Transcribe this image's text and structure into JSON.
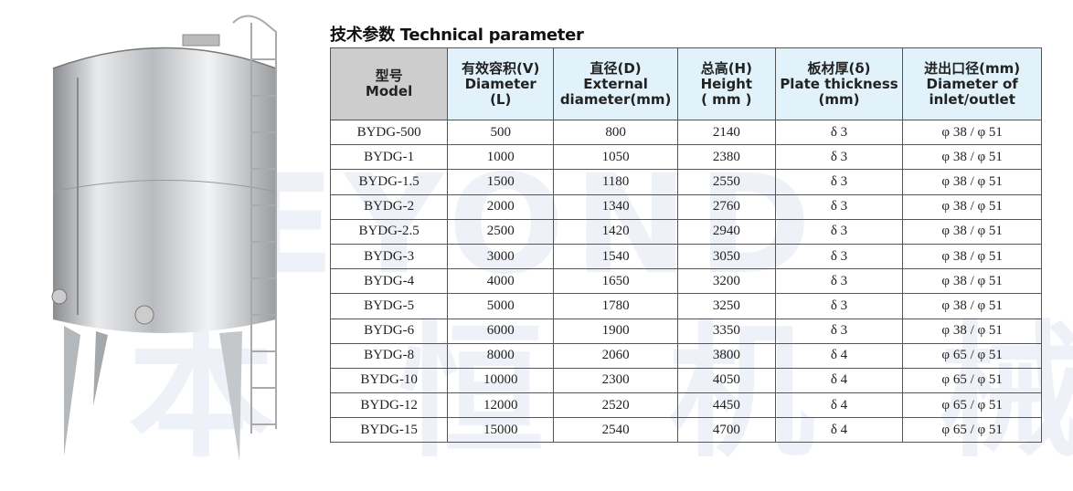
{
  "title": "技术参数 Technical parameter",
  "watermark": {
    "brand": "BEYOND",
    "chinese": "本 恒 机 械"
  },
  "headers": [
    {
      "zh": "型号",
      "en1": "Model",
      "en2": ""
    },
    {
      "zh": "有效容积(V)",
      "en1": "Diameter",
      "en2": "(L)"
    },
    {
      "zh": "直径(D)",
      "en1": "External",
      "en2": "diameter(mm)"
    },
    {
      "zh": "总高(H)",
      "en1": "Height",
      "en2": "( mm )"
    },
    {
      "zh": "板材厚(δ)",
      "en1": "Plate thickness",
      "en2": "(mm)"
    },
    {
      "zh": "进出口径(mm)",
      "en1": "Diameter of",
      "en2": "inlet/outlet"
    }
  ],
  "rows": [
    [
      "BYDG-500",
      "500",
      "800",
      "2140",
      "δ 3",
      "φ 38 / φ 51"
    ],
    [
      "BYDG-1",
      "1000",
      "1050",
      "2380",
      "δ 3",
      "φ 38 / φ 51"
    ],
    [
      "BYDG-1.5",
      "1500",
      "1180",
      "2550",
      "δ 3",
      "φ 38 / φ 51"
    ],
    [
      "BYDG-2",
      "2000",
      "1340",
      "2760",
      "δ 3",
      "φ 38 / φ 51"
    ],
    [
      "BYDG-2.5",
      "2500",
      "1420",
      "2940",
      "δ 3",
      "φ 38 / φ 51"
    ],
    [
      "BYDG-3",
      "3000",
      "1540",
      "3050",
      "δ 3",
      "φ 38 / φ 51"
    ],
    [
      "BYDG-4",
      "4000",
      "1650",
      "3200",
      "δ 3",
      "φ 38 / φ 51"
    ],
    [
      "BYDG-5",
      "5000",
      "1780",
      "3250",
      "δ 3",
      "φ 38 / φ 51"
    ],
    [
      "BYDG-6",
      "6000",
      "1900",
      "3350",
      "δ 3",
      "φ 38 / φ 51"
    ],
    [
      "BYDG-8",
      "8000",
      "2060",
      "3800",
      "δ 4",
      "φ 65 / φ 51"
    ],
    [
      "BYDG-10",
      "10000",
      "2300",
      "4050",
      "δ 4",
      "φ 65 / φ 51"
    ],
    [
      "BYDG-12",
      "12000",
      "2520",
      "4450",
      "δ 4",
      "φ 65 / φ 51"
    ],
    [
      "BYDG-15",
      "15000",
      "2540",
      "4700",
      "δ 4",
      "φ 65 / φ 51"
    ]
  ]
}
